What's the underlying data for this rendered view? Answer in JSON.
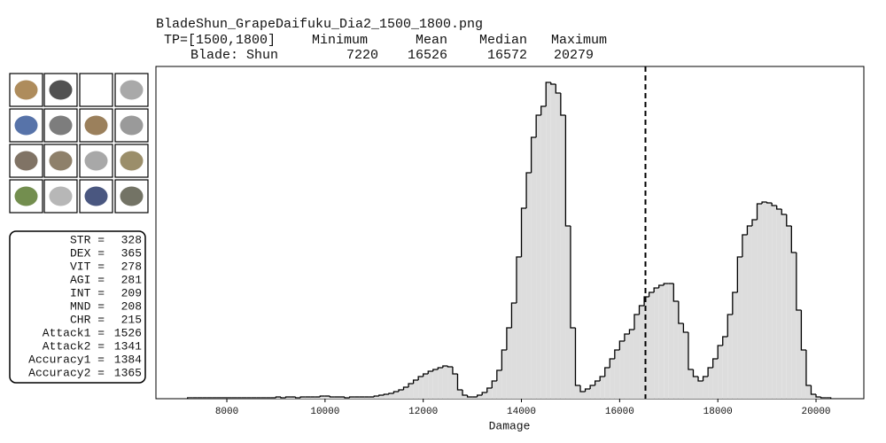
{
  "chart_data": {
    "type": "histogram",
    "title": "BladeShun_GrapeDaifuku_Dia2_1500_1800.png",
    "summary": {
      "header": [
        "TP=[1500,1800]",
        "Minimum",
        "Mean",
        "Median",
        "Maximum"
      ],
      "row_label": "Blade: Shun",
      "minimum": 7220,
      "mean": 16526,
      "median": 16572,
      "maximum": 20279
    },
    "stats": [
      {
        "label": "STR =",
        "value": 328
      },
      {
        "label": "DEX =",
        "value": 365
      },
      {
        "label": "VIT =",
        "value": 278
      },
      {
        "label": "AGI =",
        "value": 281
      },
      {
        "label": "INT =",
        "value": 209
      },
      {
        "label": "MND =",
        "value": 208
      },
      {
        "label": "CHR =",
        "value": 215
      },
      {
        "label": "Attack1 =",
        "value": 1526
      },
      {
        "label": "Attack2 =",
        "value": 1341
      },
      {
        "label": "Accuracy1 =",
        "value": 1384
      },
      {
        "label": "Accuracy2 =",
        "value": 1365
      }
    ],
    "x_label": "Damage",
    "xlim": [
      6556,
      20974
    ],
    "xticks": [
      8000,
      10000,
      12000,
      14000,
      16000,
      18000,
      20000
    ],
    "ylim": [
      0,
      375
    ],
    "color": "#dddddd",
    "bins": [
      7200,
      7300,
      7400,
      7500,
      7600,
      7700,
      7800,
      7900,
      8000,
      8100,
      8200,
      8300,
      8400,
      8500,
      8600,
      8700,
      8800,
      8900,
      9000,
      9100,
      9200,
      9300,
      9400,
      9500,
      9600,
      9700,
      9800,
      9900,
      10000,
      10100,
      10200,
      10300,
      10400,
      10500,
      10600,
      10700,
      10800,
      10900,
      11000,
      11100,
      11200,
      11300,
      11400,
      11500,
      11600,
      11700,
      11800,
      11900,
      12000,
      12100,
      12200,
      12300,
      12400,
      12500,
      12600,
      12700,
      12800,
      12900,
      13000,
      13100,
      13200,
      13300,
      13400,
      13500,
      13600,
      13700,
      13800,
      13900,
      14000,
      14100,
      14200,
      14300,
      14400,
      14500,
      14600,
      14700,
      14800,
      14900,
      15000,
      15100,
      15200,
      15300,
      15400,
      15500,
      15600,
      15700,
      15800,
      15900,
      16000,
      16100,
      16200,
      16300,
      16400,
      16500,
      16600,
      16700,
      16800,
      16900,
      17000,
      17100,
      17200,
      17300,
      17400,
      17500,
      17600,
      17700,
      17800,
      17900,
      18000,
      18100,
      18200,
      18300,
      18400,
      18500,
      18600,
      18700,
      18800,
      18900,
      19000,
      19100,
      19200,
      19300,
      19400,
      19500,
      19600,
      19700,
      19800,
      19900,
      20000,
      20100,
      20200,
      20300
    ],
    "values": [
      1,
      1,
      1,
      1,
      1,
      1,
      1,
      1,
      1,
      1,
      1,
      1,
      1,
      1,
      1,
      1,
      1,
      1,
      2,
      1,
      2,
      2,
      1,
      2,
      2,
      2,
      2,
      3,
      3,
      2,
      2,
      2,
      1,
      2,
      2,
      2,
      2,
      2,
      3,
      4,
      5,
      6,
      8,
      10,
      13,
      17,
      21,
      25,
      28,
      31,
      33,
      35,
      37,
      36,
      28,
      10,
      4,
      2,
      2,
      4,
      7,
      12,
      20,
      32,
      55,
      80,
      108,
      160,
      215,
      255,
      295,
      320,
      330,
      357,
      355,
      345,
      320,
      195,
      80,
      15,
      8,
      11,
      15,
      20,
      25,
      35,
      45,
      55,
      65,
      73,
      78,
      95,
      105,
      115,
      120,
      125,
      128,
      130,
      130,
      110,
      85,
      75,
      33,
      25,
      20,
      25,
      35,
      45,
      60,
      70,
      95,
      120,
      160,
      185,
      195,
      202,
      220,
      222,
      221,
      218,
      214,
      208,
      195,
      165,
      100,
      55,
      15,
      5,
      2,
      1,
      1
    ]
  }
}
